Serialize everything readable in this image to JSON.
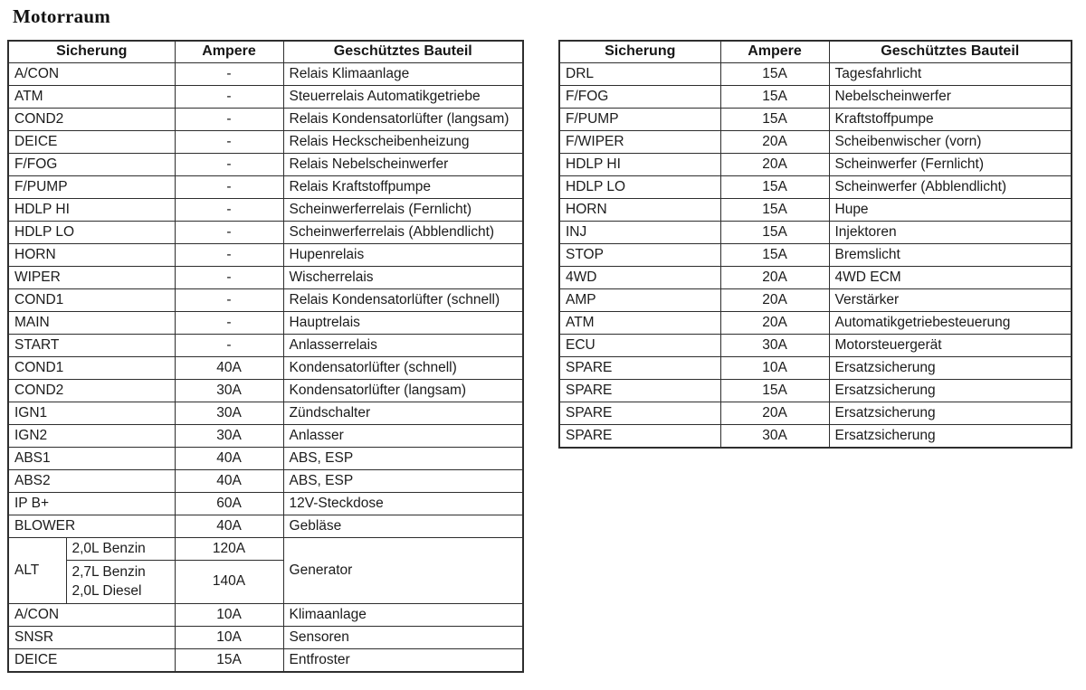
{
  "title": "Motorraum",
  "colors": {
    "border": "#2e2e2e",
    "text": "#1b1b1b",
    "background": "#ffffff"
  },
  "left_table": {
    "headers": [
      "Sicherung",
      "Ampere",
      "Geschütztes Bauteil"
    ],
    "rows_top": [
      [
        "A/CON",
        "-",
        "Relais Klimaanlage"
      ],
      [
        "ATM",
        "-",
        "Steuerrelais Automatikgetriebe"
      ],
      [
        "COND2",
        "-",
        "Relais Kondensatorlüfter (langsam)"
      ],
      [
        "DEICE",
        "-",
        "Relais Heckscheibenheizung"
      ],
      [
        "F/FOG",
        "-",
        "Relais Nebelscheinwerfer"
      ],
      [
        "F/PUMP",
        "-",
        "Relais Kraftstoffpumpe"
      ],
      [
        "HDLP HI",
        "-",
        "Scheinwerferrelais (Fernlicht)"
      ],
      [
        "HDLP LO",
        "-",
        "Scheinwerferrelais (Abblendlicht)"
      ],
      [
        "HORN",
        "-",
        "Hupenrelais"
      ],
      [
        "WIPER",
        "-",
        "Wischerrelais"
      ],
      [
        "COND1",
        "-",
        "Relais Kondensatorlüfter (schnell)"
      ],
      [
        "MAIN",
        "-",
        "Hauptrelais"
      ],
      [
        "START",
        "-",
        "Anlasserrelais"
      ],
      [
        "COND1",
        "40A",
        "Kondensatorlüfter (schnell)"
      ],
      [
        "COND2",
        "30A",
        "Kondensatorlüfter (langsam)"
      ],
      [
        "IGN1",
        "30A",
        "Zündschalter"
      ],
      [
        "IGN2",
        "30A",
        "Anlasser"
      ],
      [
        "ABS1",
        "40A",
        "ABS, ESP"
      ],
      [
        "ABS2",
        "40A",
        "ABS, ESP"
      ],
      [
        "IP B+",
        "60A",
        "12V-Steckdose"
      ],
      [
        "BLOWER",
        "40A",
        "Gebläse"
      ]
    ],
    "alt_group": {
      "label": "ALT",
      "component": "Generator",
      "variants": [
        {
          "label": "2,0L Benzin",
          "ampere": "120A"
        },
        {
          "label_line1": "2,7L Benzin",
          "label_line2": "2,0L Diesel",
          "ampere": "140A"
        }
      ]
    },
    "rows_bottom": [
      [
        "A/CON",
        "10A",
        "Klimaanlage"
      ],
      [
        "SNSR",
        "10A",
        "Sensoren"
      ],
      [
        "DEICE",
        "15A",
        "Entfroster"
      ]
    ]
  },
  "right_table": {
    "headers": [
      "Sicherung",
      "Ampere",
      "Geschütztes Bauteil"
    ],
    "rows": [
      [
        "DRL",
        "15A",
        "Tagesfahrlicht"
      ],
      [
        "F/FOG",
        "15A",
        "Nebelscheinwerfer"
      ],
      [
        "F/PUMP",
        "15A",
        "Kraftstoffpumpe"
      ],
      [
        "F/WIPER",
        "20A",
        "Scheibenwischer (vorn)"
      ],
      [
        "HDLP HI",
        "20A",
        "Scheinwerfer (Fernlicht)"
      ],
      [
        "HDLP LO",
        "15A",
        "Scheinwerfer (Abblendlicht)"
      ],
      [
        "HORN",
        "15A",
        "Hupe"
      ],
      [
        "INJ",
        "15A",
        "Injektoren"
      ],
      [
        "STOP",
        "15A",
        "Bremslicht"
      ],
      [
        "4WD",
        "20A",
        "4WD ECM"
      ],
      [
        "AMP",
        "20A",
        "Verstärker"
      ],
      [
        "ATM",
        "20A",
        "Automatikgetriebesteuerung"
      ],
      [
        "ECU",
        "30A",
        "Motorsteuergerät"
      ],
      [
        "SPARE",
        "10A",
        "Ersatzsicherung"
      ],
      [
        "SPARE",
        "15A",
        "Ersatzsicherung"
      ],
      [
        "SPARE",
        "20A",
        "Ersatzsicherung"
      ],
      [
        "SPARE",
        "30A",
        "Ersatzsicherung"
      ]
    ]
  }
}
